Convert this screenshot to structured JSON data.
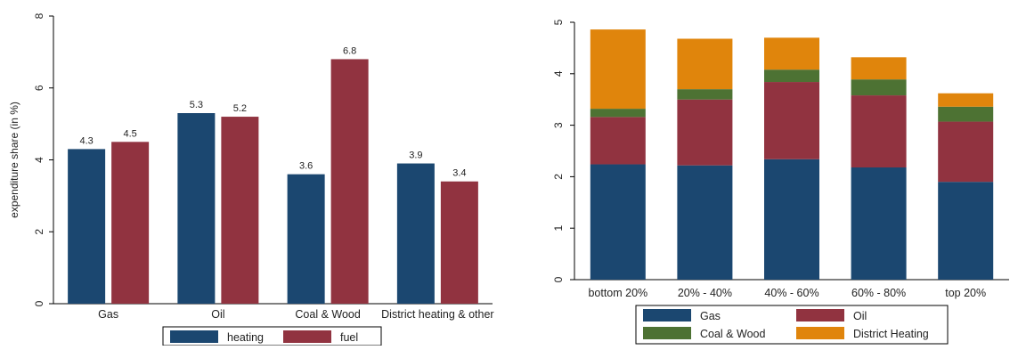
{
  "chart_data": [
    {
      "type": "bar",
      "title": "",
      "xlabel": "",
      "ylabel": "expenditure share (in %)",
      "ylim": [
        0,
        8
      ],
      "yticks": [
        "0",
        "2",
        "4",
        "6",
        "8"
      ],
      "grid": false,
      "categories": [
        "Gas",
        "Oil",
        "Coal & Wood",
        "District heating & other"
      ],
      "series": [
        {
          "name": "heating",
          "color": "#1b4770",
          "values": [
            4.3,
            5.3,
            3.6,
            3.9
          ],
          "labels": [
            "4.3",
            "5.3",
            "3.6",
            "3.9"
          ]
        },
        {
          "name": "fuel",
          "color": "#913340",
          "values": [
            4.5,
            5.2,
            6.8,
            3.4
          ],
          "labels": [
            "4.5",
            "5.2",
            "6.8",
            "3.4"
          ]
        }
      ],
      "legend_position": "bottom"
    },
    {
      "type": "bar",
      "stacked": true,
      "title": "",
      "xlabel": "",
      "ylabel": "",
      "ylim": [
        0,
        5
      ],
      "yticks": [
        "0",
        "1",
        "2",
        "3",
        "4",
        "5"
      ],
      "grid": false,
      "categories": [
        "bottom 20%",
        "20% - 40%",
        "40% - 60%",
        "60% - 80%",
        "top 20%"
      ],
      "series": [
        {
          "name": "Gas",
          "color": "#1b4770",
          "values": [
            2.24,
            2.22,
            2.34,
            2.18,
            1.9
          ]
        },
        {
          "name": "Oil",
          "color": "#913340",
          "values": [
            0.92,
            1.28,
            1.5,
            1.4,
            1.17
          ]
        },
        {
          "name": "Coal & Wood",
          "color": "#4d7233",
          "values": [
            0.16,
            0.2,
            0.24,
            0.31,
            0.29
          ]
        },
        {
          "name": "District Heating",
          "color": "#e0850c",
          "values": [
            1.54,
            0.98,
            0.62,
            0.43,
            0.26
          ]
        }
      ],
      "legend_position": "bottom"
    }
  ]
}
